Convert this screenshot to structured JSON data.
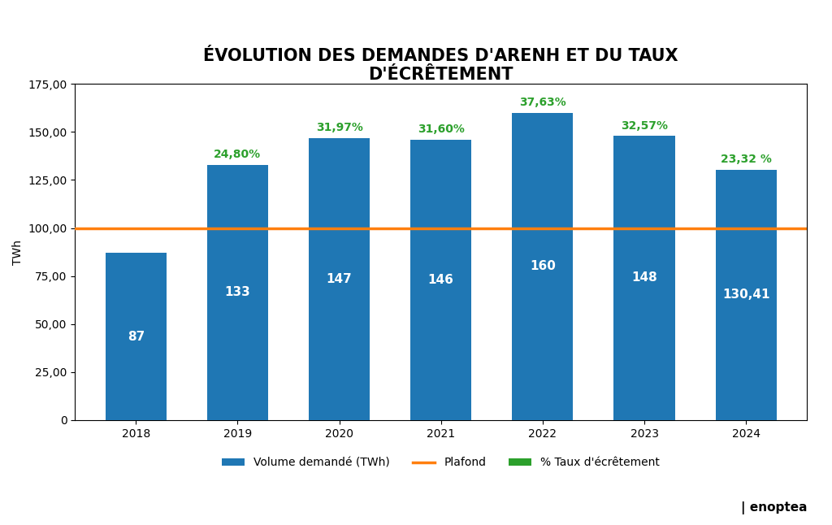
{
  "chart_data": {
    "type": "bar",
    "title": "ÉVOLUTION DES DEMANDES D'ARENH ET DU TAUX\nD'ÉCRÊTEMENT",
    "ylabel": "TWh",
    "categories": [
      "2018",
      "2019",
      "2020",
      "2021",
      "2022",
      "2023",
      "2024"
    ],
    "series": [
      {
        "name": "Volume demandé (TWh)",
        "values": [
          87,
          133,
          147,
          146,
          160,
          148,
          130.41
        ],
        "value_labels": [
          "87",
          "133",
          "147",
          "146",
          "160",
          "148",
          "130,41"
        ]
      }
    ],
    "data_labels": true,
    "hline": {
      "name": "Plafond",
      "value": 100
    },
    "annotations": {
      "name": "% Taux d'écrêtement",
      "items": [
        {
          "category": "2019",
          "text": "24,80%"
        },
        {
          "category": "2020",
          "text": "31,97%"
        },
        {
          "category": "2021",
          "text": "31,60%"
        },
        {
          "category": "2022",
          "text": "37,63%"
        },
        {
          "category": "2023",
          "text": "32,57%"
        },
        {
          "category": "2024",
          "text": "23,32 %"
        }
      ]
    },
    "footer": "| enoptea",
    "ylim": [
      0,
      175
    ],
    "yticks": [
      0,
      {
        "value": 25,
        "label": "25,00"
      },
      {
        "value": 50,
        "label": "50,00"
      },
      {
        "value": 75,
        "label": "75,00"
      },
      {
        "value": 100,
        "label": "100,00"
      },
      {
        "value": 125,
        "label": "125,00"
      },
      {
        "value": 150,
        "label": "150,00"
      },
      {
        "value": 175,
        "label": "175,00"
      }
    ],
    "legend": "upper center",
    "grid": false
  }
}
